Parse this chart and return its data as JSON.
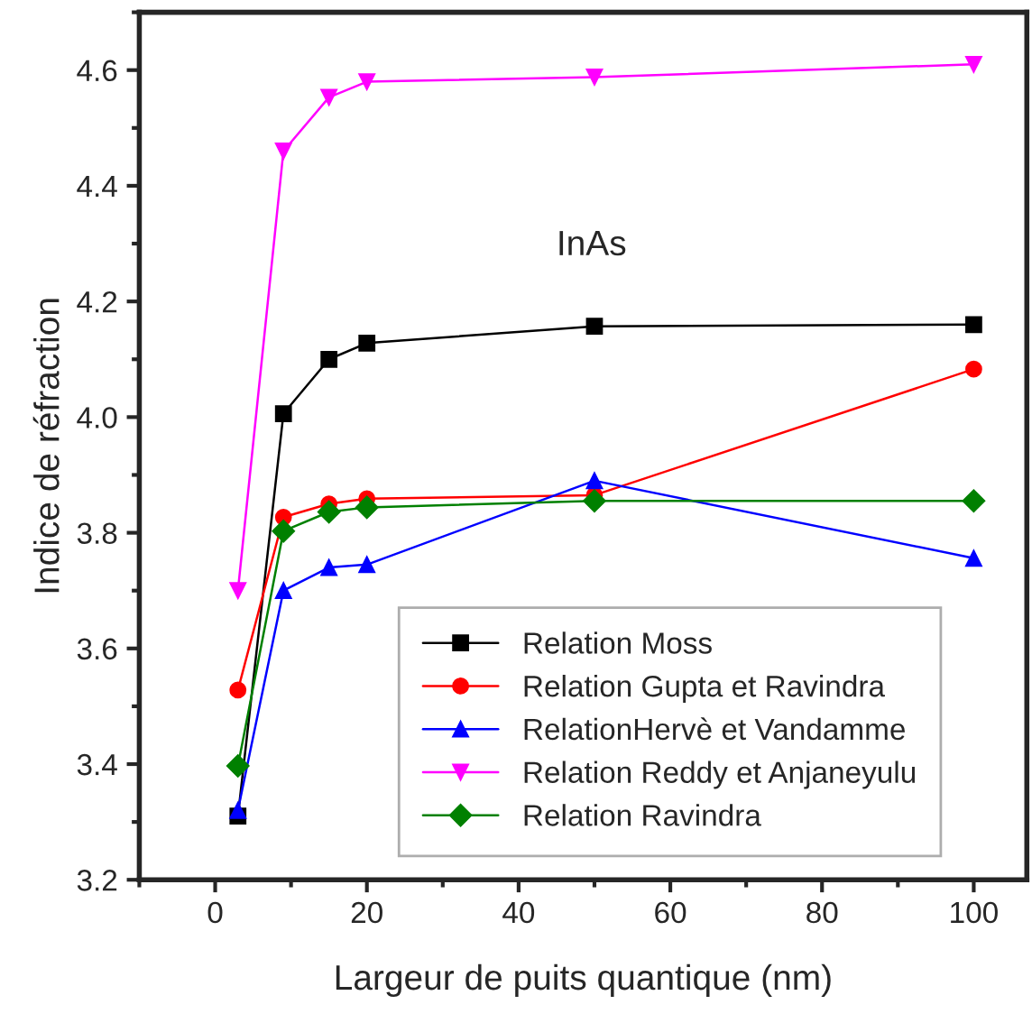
{
  "chart_data": {
    "type": "line",
    "xlabel": "Largeur de puits quantique (nm)",
    "ylabel": "Indice de réfraction",
    "annotations": [
      "InAs"
    ],
    "x": [
      3,
      9,
      15,
      20,
      50,
      100
    ],
    "xlim": [
      -10,
      107
    ],
    "xticks": [
      0,
      20,
      40,
      60,
      80,
      100
    ],
    "ylim": [
      3.2,
      4.7
    ],
    "yticks": [
      3.2,
      3.4,
      3.6,
      3.8,
      {
        "value": 4,
        "label": "4.0"
      },
      4.2,
      4.4,
      4.6
    ],
    "grid": false,
    "legend": "bottom right",
    "series": [
      {
        "name": "Relation Moss",
        "color": "#000000",
        "marker": "square",
        "values": [
          3.31,
          4.006,
          4.1,
          4.128,
          4.157,
          4.16
        ]
      },
      {
        "name": "Relation Gupta et Ravindra",
        "color": "#ff0000",
        "marker": "circle",
        "values": [
          3.528,
          3.827,
          3.85,
          3.859,
          3.865,
          4.083
        ]
      },
      {
        "name": "RelationHervè et Vandamme",
        "color": "#0000ff",
        "marker": "triangle",
        "values": [
          3.32,
          3.7,
          3.74,
          3.745,
          3.89,
          3.756
        ]
      },
      {
        "name": "Relation Reddy et Anjaneyulu",
        "color": "#ff00ff",
        "marker": "triangle_down",
        "values": [
          3.7,
          4.46,
          4.553,
          4.58,
          4.588,
          4.61
        ]
      },
      {
        "name": "Relation Ravindra",
        "color": "#008000",
        "marker": "diamond",
        "values": [
          3.397,
          3.803,
          3.836,
          3.844,
          3.855,
          3.855
        ]
      }
    ]
  }
}
